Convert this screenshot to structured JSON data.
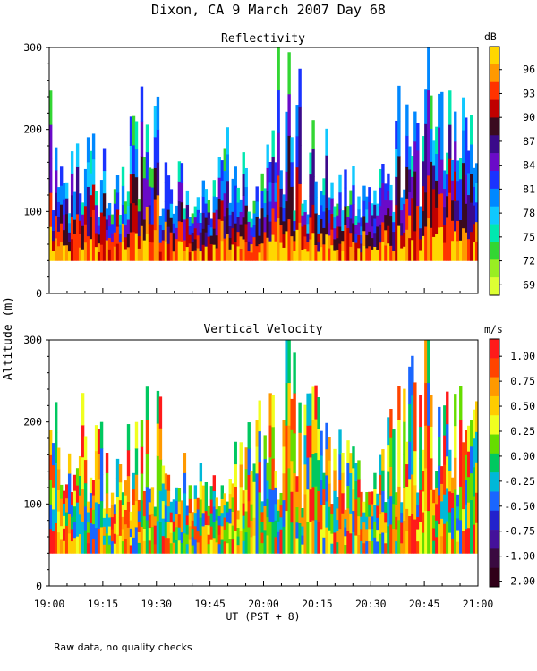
{
  "figure": {
    "title": "Dixon, CA  9 March 2007  Day  68",
    "y_axis_label": "Altitude (m)",
    "x_axis_label": "UT  (PST + 8)",
    "footnote": "Raw data, no quality checks"
  },
  "chart_data": [
    {
      "type": "heatmap",
      "title": "Reflectivity",
      "colorbar_unit": "dB",
      "colorbar_ticks": [
        "96",
        "93",
        "90",
        "87",
        "84",
        "81",
        "78",
        "75",
        "72",
        "69"
      ],
      "colorbar_colors": [
        "#ffd700",
        "#ff9900",
        "#ff3300",
        "#c00000",
        "#3a0a1f",
        "#3a0a8a",
        "#6a0ac8",
        "#1a33ff",
        "#0088ff",
        "#10c8ff",
        "#00e8b0",
        "#33d633",
        "#99ee22",
        "#ddff33"
      ],
      "x_ticks": [
        "19:00",
        "19:15",
        "19:30",
        "19:45",
        "20:00",
        "20:15",
        "20:30",
        "20:45",
        "21:00"
      ],
      "y_ticks": [
        0,
        100,
        200,
        300
      ],
      "xlim": [
        "19:00",
        "21:00"
      ],
      "ylim": [
        0,
        300
      ],
      "xlabel": "UT  (PST + 8)",
      "ylabel": "Altitude (m)",
      "echo_base_m": 40,
      "echo_top_profile_m": [
        {
          "time": "19:00",
          "top": 240
        },
        {
          "time": "19:05",
          "top": 160
        },
        {
          "time": "19:10",
          "top": 240
        },
        {
          "time": "19:15",
          "top": 180
        },
        {
          "time": "19:20",
          "top": 140
        },
        {
          "time": "19:25",
          "top": 260
        },
        {
          "time": "19:30",
          "top": 240
        },
        {
          "time": "19:35",
          "top": 140
        },
        {
          "time": "19:40",
          "top": 180
        },
        {
          "time": "19:45",
          "top": 120
        },
        {
          "time": "19:50",
          "top": 190
        },
        {
          "time": "19:55",
          "top": 180
        },
        {
          "time": "20:00",
          "top": 220
        },
        {
          "time": "20:05",
          "top": 300
        },
        {
          "time": "20:10",
          "top": 260
        },
        {
          "time": "20:15",
          "top": 260
        },
        {
          "time": "20:20",
          "top": 180
        },
        {
          "time": "20:25",
          "top": 160
        },
        {
          "time": "20:30",
          "top": 120
        },
        {
          "time": "20:35",
          "top": 200
        },
        {
          "time": "20:40",
          "top": 260
        },
        {
          "time": "20:45",
          "top": 300
        },
        {
          "time": "20:50",
          "top": 280
        },
        {
          "time": "20:55",
          "top": 240
        },
        {
          "time": "21:00",
          "top": 220
        }
      ]
    },
    {
      "type": "heatmap",
      "title": "Vertical Velocity",
      "colorbar_unit": "m/s",
      "colorbar_ticks": [
        "1.00",
        "0.75",
        "0.50",
        "0.25",
        "0.00",
        "-0.25",
        "-0.50",
        "-0.75",
        "-1.00",
        "-2.00"
      ],
      "colorbar_colors": [
        "#ff1a1a",
        "#ff4400",
        "#ff9900",
        "#ffcc00",
        "#f0ff20",
        "#66dd00",
        "#00c860",
        "#00b8d8",
        "#1a66ff",
        "#2222cc",
        "#44119a",
        "#3a0a40",
        "#300018"
      ],
      "x_ticks": [
        "19:00",
        "19:15",
        "19:30",
        "19:45",
        "20:00",
        "20:15",
        "20:30",
        "20:45",
        "21:00"
      ],
      "y_ticks": [
        0,
        100,
        200,
        300
      ],
      "xlim": [
        "19:00",
        "21:00"
      ],
      "ylim": [
        0,
        300
      ],
      "xlabel": "UT  (PST + 8)",
      "ylabel": "Altitude (m)",
      "echo_base_m": 40,
      "echo_top_profile_m": [
        {
          "time": "19:00",
          "top": 240
        },
        {
          "time": "19:05",
          "top": 160
        },
        {
          "time": "19:10",
          "top": 240
        },
        {
          "time": "19:15",
          "top": 180
        },
        {
          "time": "19:20",
          "top": 140
        },
        {
          "time": "19:25",
          "top": 260
        },
        {
          "time": "19:30",
          "top": 240
        },
        {
          "time": "19:35",
          "top": 140
        },
        {
          "time": "19:40",
          "top": 180
        },
        {
          "time": "19:45",
          "top": 120
        },
        {
          "time": "19:50",
          "top": 190
        },
        {
          "time": "19:55",
          "top": 180
        },
        {
          "time": "20:00",
          "top": 220
        },
        {
          "time": "20:05",
          "top": 300
        },
        {
          "time": "20:10",
          "top": 260
        },
        {
          "time": "20:15",
          "top": 260
        },
        {
          "time": "20:20",
          "top": 180
        },
        {
          "time": "20:25",
          "top": 160
        },
        {
          "time": "20:30",
          "top": 120
        },
        {
          "time": "20:35",
          "top": 200
        },
        {
          "time": "20:40",
          "top": 260
        },
        {
          "time": "20:45",
          "top": 300
        },
        {
          "time": "20:50",
          "top": 280
        },
        {
          "time": "20:55",
          "top": 240
        },
        {
          "time": "21:00",
          "top": 220
        }
      ]
    }
  ]
}
